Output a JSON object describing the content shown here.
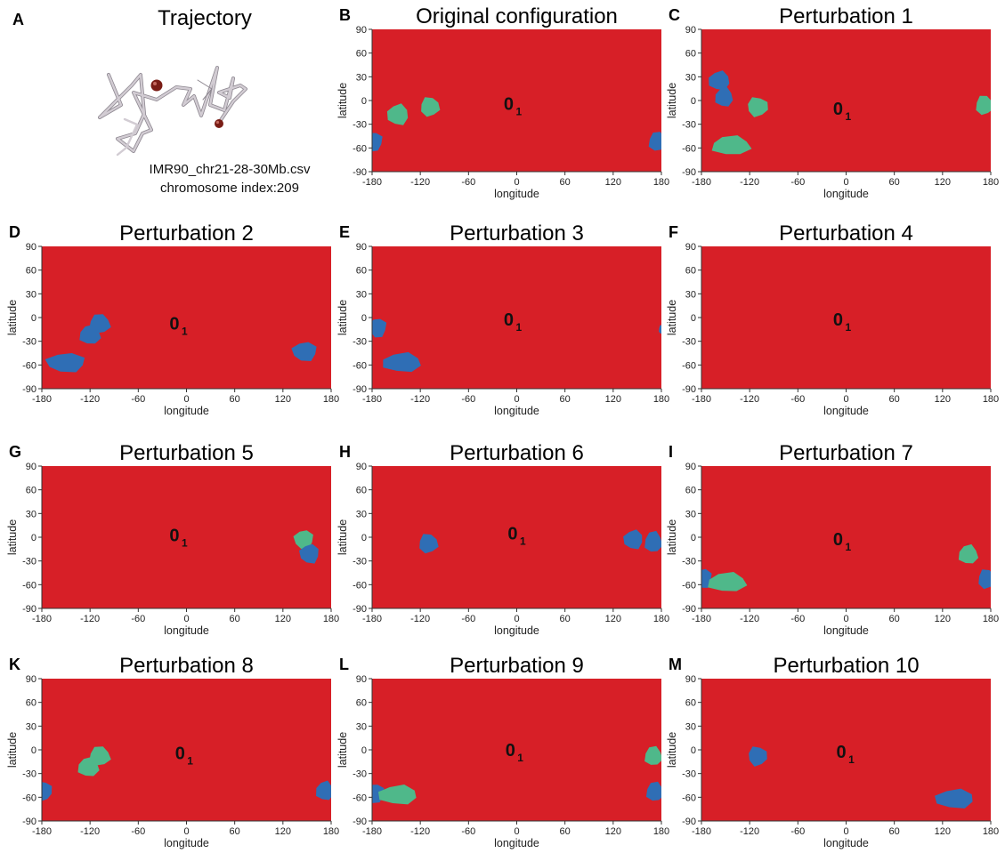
{
  "trajectory_panel": {
    "letter": "A",
    "title": "Trajectory",
    "caption_line1": "IMR90_chr21-28-30Mb.csv",
    "caption_line2": "chromosome index:209"
  },
  "colors": {
    "background_region": "#d71f27",
    "blue_region": "#2f6eb5",
    "green_region": "#4fb88a",
    "trajectory_tube": "#bdb6be",
    "trajectory_bead": "#7a1d16"
  },
  "chart_data": [
    {
      "letter": "B",
      "type": "area",
      "title": "Original configuration",
      "xlabel": "longitude",
      "ylabel": "latitude",
      "xlim": [
        -180,
        180
      ],
      "ylim": [
        -90,
        90
      ],
      "xticks": [
        "-180",
        "-120",
        "-60",
        "0",
        "60",
        "120",
        "180"
      ],
      "yticks": [
        "90",
        "60",
        "30",
        "0",
        "-30",
        "-60",
        "-90"
      ],
      "knot": {
        "main": "0",
        "sub": "1",
        "lon": -10,
        "lat": -12
      },
      "regions": [
        {
          "color": "green",
          "lon": -148,
          "lat": -18,
          "rx": 12,
          "ry": 12
        },
        {
          "color": "green",
          "lon": -108,
          "lat": -8,
          "rx": 11,
          "ry": 11
        },
        {
          "color": "blue",
          "lon": -178,
          "lat": -52,
          "rx": 10,
          "ry": 11
        },
        {
          "color": "blue",
          "lon": 175,
          "lat": -52,
          "rx": 10,
          "ry": 11
        }
      ]
    },
    {
      "letter": "C",
      "type": "area",
      "title": "Perturbation 1",
      "xlabel": "longitude",
      "ylabel": "latitude",
      "xlim": [
        -180,
        180
      ],
      "ylim": [
        -90,
        90
      ],
      "xticks": [
        "-180",
        "-120",
        "-60",
        "0",
        "60",
        "120",
        "180"
      ],
      "yticks": [
        "90",
        "60",
        "30",
        "0",
        "-30",
        "-60",
        "-90"
      ],
      "knot": {
        "main": "0",
        "sub": "1",
        "lon": -10,
        "lat": -18
      },
      "regions": [
        {
          "color": "blue",
          "lon": -158,
          "lat": 25,
          "rx": 12,
          "ry": 11
        },
        {
          "color": "blue",
          "lon": -152,
          "lat": 4,
          "rx": 10,
          "ry": 11
        },
        {
          "color": "green",
          "lon": -110,
          "lat": -8,
          "rx": 12,
          "ry": 11
        },
        {
          "color": "green",
          "lon": -143,
          "lat": -57,
          "rx": 22,
          "ry": 11
        },
        {
          "color": "green",
          "lon": 172,
          "lat": -6,
          "rx": 10,
          "ry": 11
        }
      ]
    },
    {
      "letter": "D",
      "type": "area",
      "title": "Perturbation 2",
      "xlabel": "longitude",
      "ylabel": "latitude",
      "xlim": [
        -180,
        180
      ],
      "ylim": [
        -90,
        90
      ],
      "xticks": [
        "-180",
        "-120",
        "-60",
        "0",
        "60",
        "120",
        "180"
      ],
      "yticks": [
        "90",
        "60",
        "30",
        "0",
        "-30",
        "-60",
        "-90"
      ],
      "knot": {
        "main": "0",
        "sub": "1",
        "lon": -15,
        "lat": -15
      },
      "regions": [
        {
          "color": "blue",
          "lon": -108,
          "lat": -8,
          "rx": 12,
          "ry": 11
        },
        {
          "color": "blue",
          "lon": -120,
          "lat": -22,
          "rx": 12,
          "ry": 11
        },
        {
          "color": "blue",
          "lon": -150,
          "lat": -57,
          "rx": 22,
          "ry": 11
        },
        {
          "color": "blue",
          "lon": 147,
          "lat": -43,
          "rx": 14,
          "ry": 11
        }
      ]
    },
    {
      "letter": "E",
      "type": "area",
      "title": "Perturbation 3",
      "xlabel": "longitude",
      "ylabel": "latitude",
      "xlim": [
        -180,
        180
      ],
      "ylim": [
        -90,
        90
      ],
      "xticks": [
        "-180",
        "-120",
        "-60",
        "0",
        "60",
        "120",
        "180"
      ],
      "yticks": [
        "90",
        "60",
        "30",
        "0",
        "-30",
        "-60",
        "-90"
      ],
      "knot": {
        "main": "0",
        "sub": "1",
        "lon": -10,
        "lat": -10
      },
      "regions": [
        {
          "color": "blue",
          "lon": -173,
          "lat": -13,
          "rx": 10,
          "ry": 11
        },
        {
          "color": "blue",
          "lon": -143,
          "lat": -57,
          "rx": 22,
          "ry": 11
        },
        {
          "color": "blue",
          "lon": 180,
          "lat": -15,
          "rx": 3,
          "ry": 5
        }
      ]
    },
    {
      "letter": "F",
      "type": "area",
      "title": "Perturbation 4",
      "xlabel": "longitude",
      "ylabel": "latitude",
      "xlim": [
        -180,
        180
      ],
      "ylim": [
        -90,
        90
      ],
      "xticks": [
        "-180",
        "-120",
        "-60",
        "0",
        "60",
        "120",
        "180"
      ],
      "yticks": [
        "90",
        "60",
        "30",
        "0",
        "-30",
        "-60",
        "-90"
      ],
      "knot": {
        "main": "0",
        "sub": "1",
        "lon": -10,
        "lat": -10
      },
      "regions": []
    },
    {
      "letter": "G",
      "type": "area",
      "title": "Perturbation 5",
      "xlabel": "longitude",
      "ylabel": "latitude",
      "xlim": [
        -180,
        180
      ],
      "ylim": [
        -90,
        90
      ],
      "xticks": [
        "-180",
        "-120",
        "-60",
        "0",
        "60",
        "120",
        "180"
      ],
      "yticks": [
        "90",
        "60",
        "30",
        "0",
        "-30",
        "-60",
        "-90"
      ],
      "knot": {
        "main": "0",
        "sub": "1",
        "lon": -15,
        "lat": -5
      },
      "regions": [
        {
          "color": "green",
          "lon": 146,
          "lat": -3,
          "rx": 11,
          "ry": 11
        },
        {
          "color": "blue",
          "lon": 153,
          "lat": -21,
          "rx": 11,
          "ry": 11
        }
      ]
    },
    {
      "letter": "H",
      "type": "area",
      "title": "Perturbation 6",
      "xlabel": "longitude",
      "ylabel": "latitude",
      "xlim": [
        -180,
        180
      ],
      "ylim": [
        -90,
        90
      ],
      "xticks": [
        "-180",
        "-120",
        "-60",
        "0",
        "60",
        "120",
        "180"
      ],
      "yticks": [
        "90",
        "60",
        "30",
        "0",
        "-30",
        "-60",
        "-90"
      ],
      "knot": {
        "main": "0",
        "sub": "1",
        "lon": -5,
        "lat": -3
      },
      "regions": [
        {
          "color": "blue",
          "lon": -110,
          "lat": -8,
          "rx": 11,
          "ry": 11
        },
        {
          "color": "blue",
          "lon": 145,
          "lat": -3,
          "rx": 11,
          "ry": 11
        },
        {
          "color": "blue",
          "lon": 170,
          "lat": -6,
          "rx": 10,
          "ry": 12
        }
      ]
    },
    {
      "letter": "I",
      "type": "area",
      "title": "Perturbation 7",
      "xlabel": "longitude",
      "ylabel": "latitude",
      "xlim": [
        -180,
        180
      ],
      "ylim": [
        -90,
        90
      ],
      "xticks": [
        "-180",
        "-120",
        "-60",
        "0",
        "60",
        "120",
        "180"
      ],
      "yticks": [
        "90",
        "60",
        "30",
        "0",
        "-30",
        "-60",
        "-90"
      ],
      "knot": {
        "main": "0",
        "sub": "1",
        "lon": -10,
        "lat": -10
      },
      "regions": [
        {
          "color": "blue",
          "lon": -178,
          "lat": -52,
          "rx": 10,
          "ry": 11
        },
        {
          "color": "green",
          "lon": -148,
          "lat": -57,
          "rx": 22,
          "ry": 11
        },
        {
          "color": "green",
          "lon": 152,
          "lat": -22,
          "rx": 11,
          "ry": 11
        },
        {
          "color": "blue",
          "lon": 175,
          "lat": -53,
          "rx": 10,
          "ry": 11
        }
      ]
    },
    {
      "letter": "K",
      "type": "area",
      "title": "Perturbation 8",
      "xlabel": "longitude",
      "ylabel": "latitude",
      "xlim": [
        -180,
        180
      ],
      "ylim": [
        -90,
        90
      ],
      "xticks": [
        "-180",
        "-120",
        "-60",
        "0",
        "60",
        "120",
        "180"
      ],
      "yticks": [
        "90",
        "60",
        "30",
        "0",
        "-30",
        "-60",
        "-90"
      ],
      "knot": {
        "main": "0",
        "sub": "1",
        "lon": -8,
        "lat": -12
      },
      "regions": [
        {
          "color": "green",
          "lon": -108,
          "lat": -8,
          "rx": 12,
          "ry": 11
        },
        {
          "color": "green",
          "lon": -122,
          "lat": -22,
          "rx": 12,
          "ry": 11
        },
        {
          "color": "blue",
          "lon": -178,
          "lat": -52,
          "rx": 10,
          "ry": 11
        },
        {
          "color": "blue",
          "lon": 172,
          "lat": -52,
          "rx": 10,
          "ry": 11
        }
      ]
    },
    {
      "letter": "L",
      "type": "area",
      "title": "Perturbation 9",
      "xlabel": "longitude",
      "ylabel": "latitude",
      "xlim": [
        -180,
        180
      ],
      "ylim": [
        -90,
        90
      ],
      "xticks": [
        "-180",
        "-120",
        "-60",
        "0",
        "60",
        "120",
        "180"
      ],
      "yticks": [
        "90",
        "60",
        "30",
        "0",
        "-30",
        "-60",
        "-90"
      ],
      "knot": {
        "main": "0",
        "sub": "1",
        "lon": -8,
        "lat": -8
      },
      "regions": [
        {
          "color": "blue",
          "lon": -176,
          "lat": -55,
          "rx": 10,
          "ry": 11
        },
        {
          "color": "green",
          "lon": -148,
          "lat": -57,
          "rx": 22,
          "ry": 11
        },
        {
          "color": "green",
          "lon": 170,
          "lat": -8,
          "rx": 10,
          "ry": 11
        },
        {
          "color": "blue",
          "lon": 172,
          "lat": -53,
          "rx": 10,
          "ry": 11
        }
      ]
    },
    {
      "letter": "M",
      "type": "area",
      "title": "Perturbation 10",
      "xlabel": "longitude",
      "ylabel": "latitude",
      "xlim": [
        -180,
        180
      ],
      "ylim": [
        -90,
        90
      ],
      "xticks": [
        "-180",
        "-120",
        "-60",
        "0",
        "60",
        "120",
        "180"
      ],
      "yticks": [
        "90",
        "60",
        "30",
        "0",
        "-30",
        "-60",
        "-90"
      ],
      "knot": {
        "main": "0",
        "sub": "1",
        "lon": -6,
        "lat": -10
      },
      "regions": [
        {
          "color": "blue",
          "lon": -110,
          "lat": -8,
          "rx": 11,
          "ry": 11
        },
        {
          "color": "blue",
          "lon": 135,
          "lat": -62,
          "rx": 22,
          "ry": 11
        }
      ]
    }
  ]
}
